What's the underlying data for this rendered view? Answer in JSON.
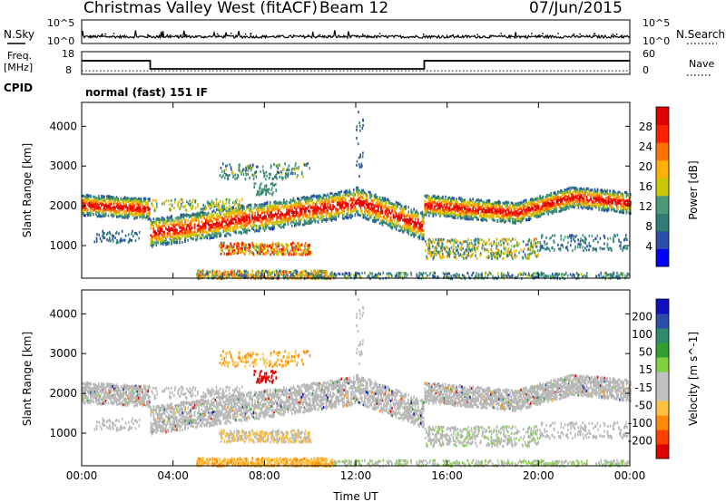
{
  "header": {
    "station": "Christmas Valley West (fitACF)",
    "beam": "Beam 12",
    "date": "07/Jun/2015"
  },
  "top_panels": {
    "nsky_label": "N.Sky",
    "nsky_ticks": [
      "10^5",
      "10^0"
    ],
    "nsearch_label": "N.Search",
    "nsearch_ticks": [
      "10^5",
      "10^0"
    ],
    "freq_label": "Freq.",
    "freq_unit": "[MHz]",
    "freq_ticks": [
      "18",
      "8"
    ],
    "nave_label": "Nave",
    "nave_ticks": [
      "60",
      "0"
    ],
    "cpid_label": "CPID",
    "cpid_value": "normal (fast) 151 IF"
  },
  "colors": {
    "power": [
      "#0000ff",
      "#2a4ea8",
      "#2e7d74",
      "#4a9a7a",
      "#c8c800",
      "#ffb000",
      "#ff7000",
      "#ff2000",
      "#e00000"
    ],
    "velocity": [
      "#e00000",
      "#ff4000",
      "#ff8a00",
      "#ffc040",
      "#c0c0c0",
      "#c0c0c0",
      "#80d040",
      "#30a030",
      "#2e8a6a",
      "#2a4ea8",
      "#1010c0"
    ],
    "ground_scatter": "#b8b8b8"
  },
  "chart_data": [
    {
      "type": "line",
      "name": "top-status",
      "x_unit": "UT hour",
      "freq_mhz_steps": [
        [
          0,
          14.5
        ],
        [
          3,
          10.6
        ],
        [
          15,
          14.5
        ],
        [
          24,
          14.5
        ]
      ],
      "nave_dotted_level": 10
    },
    {
      "type": "heatmap",
      "name": "power",
      "xlabel": "",
      "ylabel": "Slant Range [km]",
      "x_ticks": [
        "00:00",
        "04:00",
        "08:00",
        "12:00",
        "16:00",
        "20:00",
        "00:00"
      ],
      "xlim": [
        0,
        24
      ],
      "y_ticks": [
        "1000",
        "2000",
        "3000",
        "4000"
      ],
      "ylim": [
        180,
        4600
      ],
      "colorbar": {
        "label": "Power [dB]",
        "ticks": [
          "28",
          "24",
          "20",
          "16",
          "12",
          "8",
          "4"
        ],
        "range": [
          0,
          32
        ]
      },
      "bands": [
        {
          "t": [
            0,
            3
          ],
          "range_km": [
            1700,
            2300
          ],
          "peak_db": 26
        },
        {
          "t": [
            3,
            12
          ],
          "range_km": [
            1100,
            2100
          ],
          "peak_db": 30
        },
        {
          "t": [
            12,
            15
          ],
          "range_km": [
            1300,
            2300
          ],
          "peak_db": 24
        },
        {
          "t": [
            15,
            24
          ],
          "range_km": [
            1700,
            2400
          ],
          "peak_db": 26
        },
        {
          "t": [
            6,
            10
          ],
          "range_km": [
            800,
            1100
          ],
          "peak_db": 22
        },
        {
          "t": [
            15,
            20
          ],
          "range_km": [
            700,
            1200
          ],
          "peak_db": 18
        },
        {
          "t": [
            6,
            10
          ],
          "range_km": [
            2700,
            3100
          ],
          "peak_db": 14
        }
      ]
    },
    {
      "type": "heatmap",
      "name": "velocity",
      "xlabel": "Time UT",
      "ylabel": "Slant Range [km]",
      "x_ticks": [
        "00:00",
        "04:00",
        "08:00",
        "12:00",
        "16:00",
        "20:00",
        "00:00"
      ],
      "xlim": [
        0,
        24
      ],
      "y_ticks": [
        "1000",
        "2000",
        "3000",
        "4000"
      ],
      "ylim": [
        180,
        4600
      ],
      "colorbar": {
        "label": "Velocity [m s^-1]",
        "ticks": [
          "200",
          "100",
          "50",
          "15",
          "-15",
          "-50",
          "-100",
          "-200"
        ],
        "range": [
          -250,
          250
        ]
      }
    }
  ]
}
